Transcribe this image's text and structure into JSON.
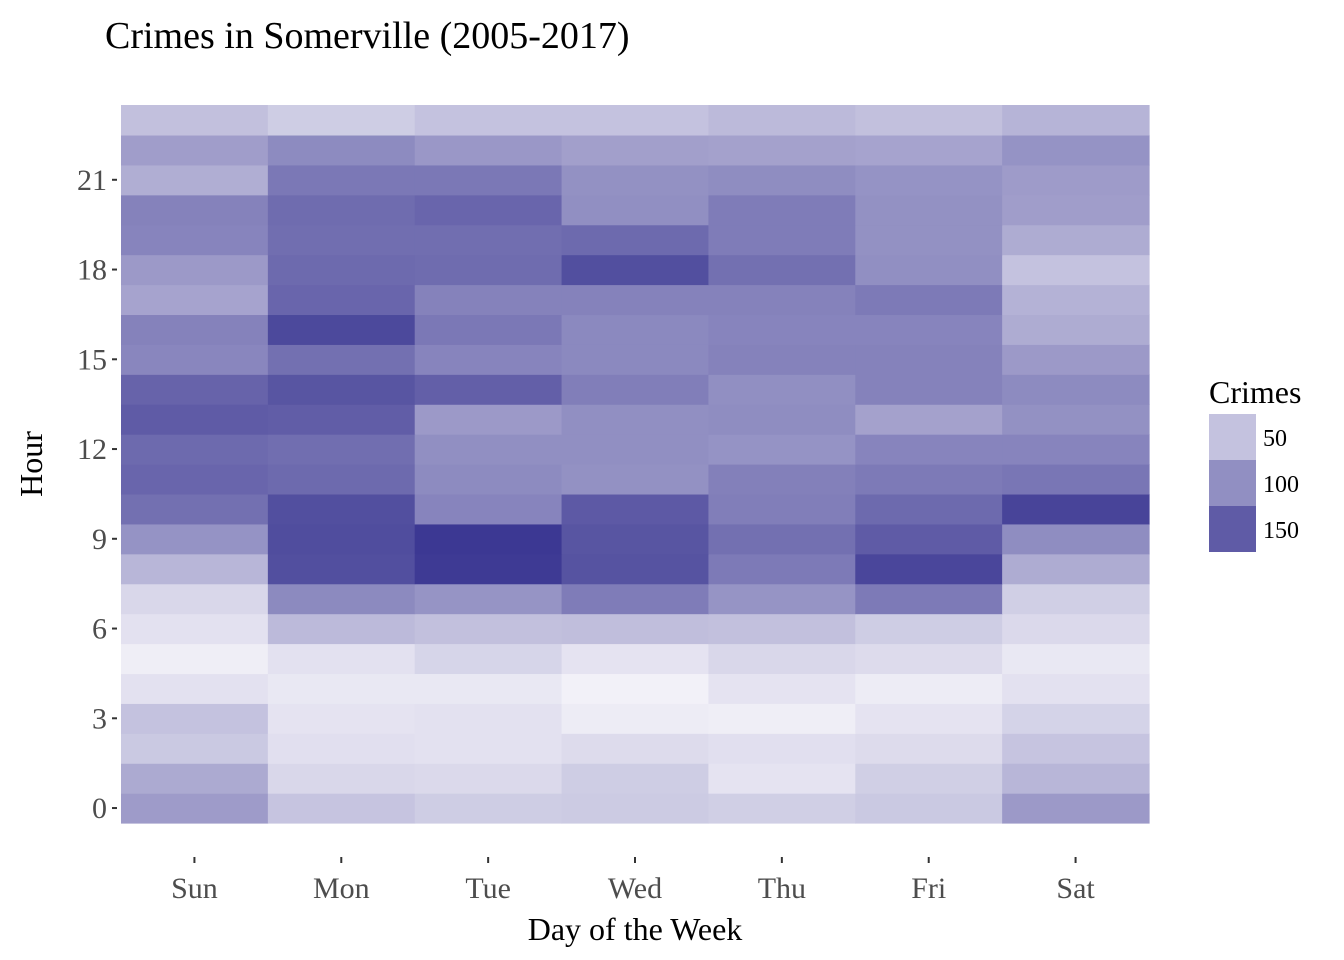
{
  "chart_data": {
    "type": "heatmap",
    "title": "Crimes in Somerville (2005-2017)",
    "xlabel": "Day of the Week",
    "ylabel": "Hour",
    "x": [
      "Sun",
      "Mon",
      "Tue",
      "Wed",
      "Thu",
      "Fri",
      "Sat"
    ],
    "y": [
      0,
      1,
      2,
      3,
      4,
      5,
      6,
      7,
      8,
      9,
      10,
      11,
      12,
      13,
      14,
      15,
      16,
      17,
      18,
      19,
      20,
      21,
      22,
      23
    ],
    "y_ticks": [
      0,
      3,
      6,
      9,
      12,
      15,
      18,
      21
    ],
    "y_tick_labels": [
      "0",
      "3",
      "6",
      "9",
      "12",
      "15",
      "18",
      "21"
    ],
    "values": [
      [
        88,
        48,
        40,
        42,
        38,
        44,
        90
      ],
      [
        74,
        30,
        28,
        40,
        18,
        38,
        62
      ],
      [
        44,
        22,
        20,
        26,
        22,
        26,
        48
      ],
      [
        50,
        18,
        20,
        10,
        8,
        18,
        34
      ],
      [
        20,
        14,
        14,
        5,
        18,
        10,
        20
      ],
      [
        8,
        20,
        32,
        18,
        30,
        26,
        14
      ],
      [
        20,
        58,
        52,
        54,
        52,
        40,
        28
      ],
      [
        30,
        105,
        95,
        118,
        95,
        120,
        38
      ],
      [
        62,
        162,
        182,
        158,
        120,
        170,
        72
      ],
      [
        96,
        164,
        184,
        156,
        130,
        150,
        102
      ],
      [
        130,
        162,
        110,
        152,
        116,
        136,
        172
      ],
      [
        140,
        136,
        104,
        98,
        114,
        120,
        124
      ],
      [
        136,
        132,
        100,
        100,
        96,
        110,
        110
      ],
      [
        150,
        148,
        90,
        100,
        102,
        82,
        98
      ],
      [
        142,
        156,
        146,
        116,
        100,
        112,
        104
      ],
      [
        108,
        130,
        110,
        106,
        112,
        112,
        90
      ],
      [
        112,
        168,
        122,
        106,
        110,
        110,
        72
      ],
      [
        80,
        140,
        112,
        112,
        112,
        120,
        66
      ],
      [
        90,
        136,
        134,
        162,
        130,
        100,
        50
      ],
      [
        110,
        132,
        132,
        136,
        118,
        98,
        72
      ],
      [
        112,
        134,
        140,
        100,
        118,
        98,
        86
      ],
      [
        70,
        122,
        122,
        98,
        102,
        96,
        88
      ],
      [
        86,
        104,
        92,
        84,
        82,
        80,
        96
      ],
      [
        52,
        40,
        50,
        50,
        58,
        52,
        64
      ]
    ],
    "legend": {
      "title": "Crimes",
      "position": "right",
      "breaks": [
        50,
        100,
        150
      ],
      "break_labels": [
        "50",
        "100",
        "150"
      ],
      "low_color": "#f7f6fb",
      "high_color": "#3b3792",
      "range": [
        0,
        185
      ]
    },
    "grid": false
  }
}
